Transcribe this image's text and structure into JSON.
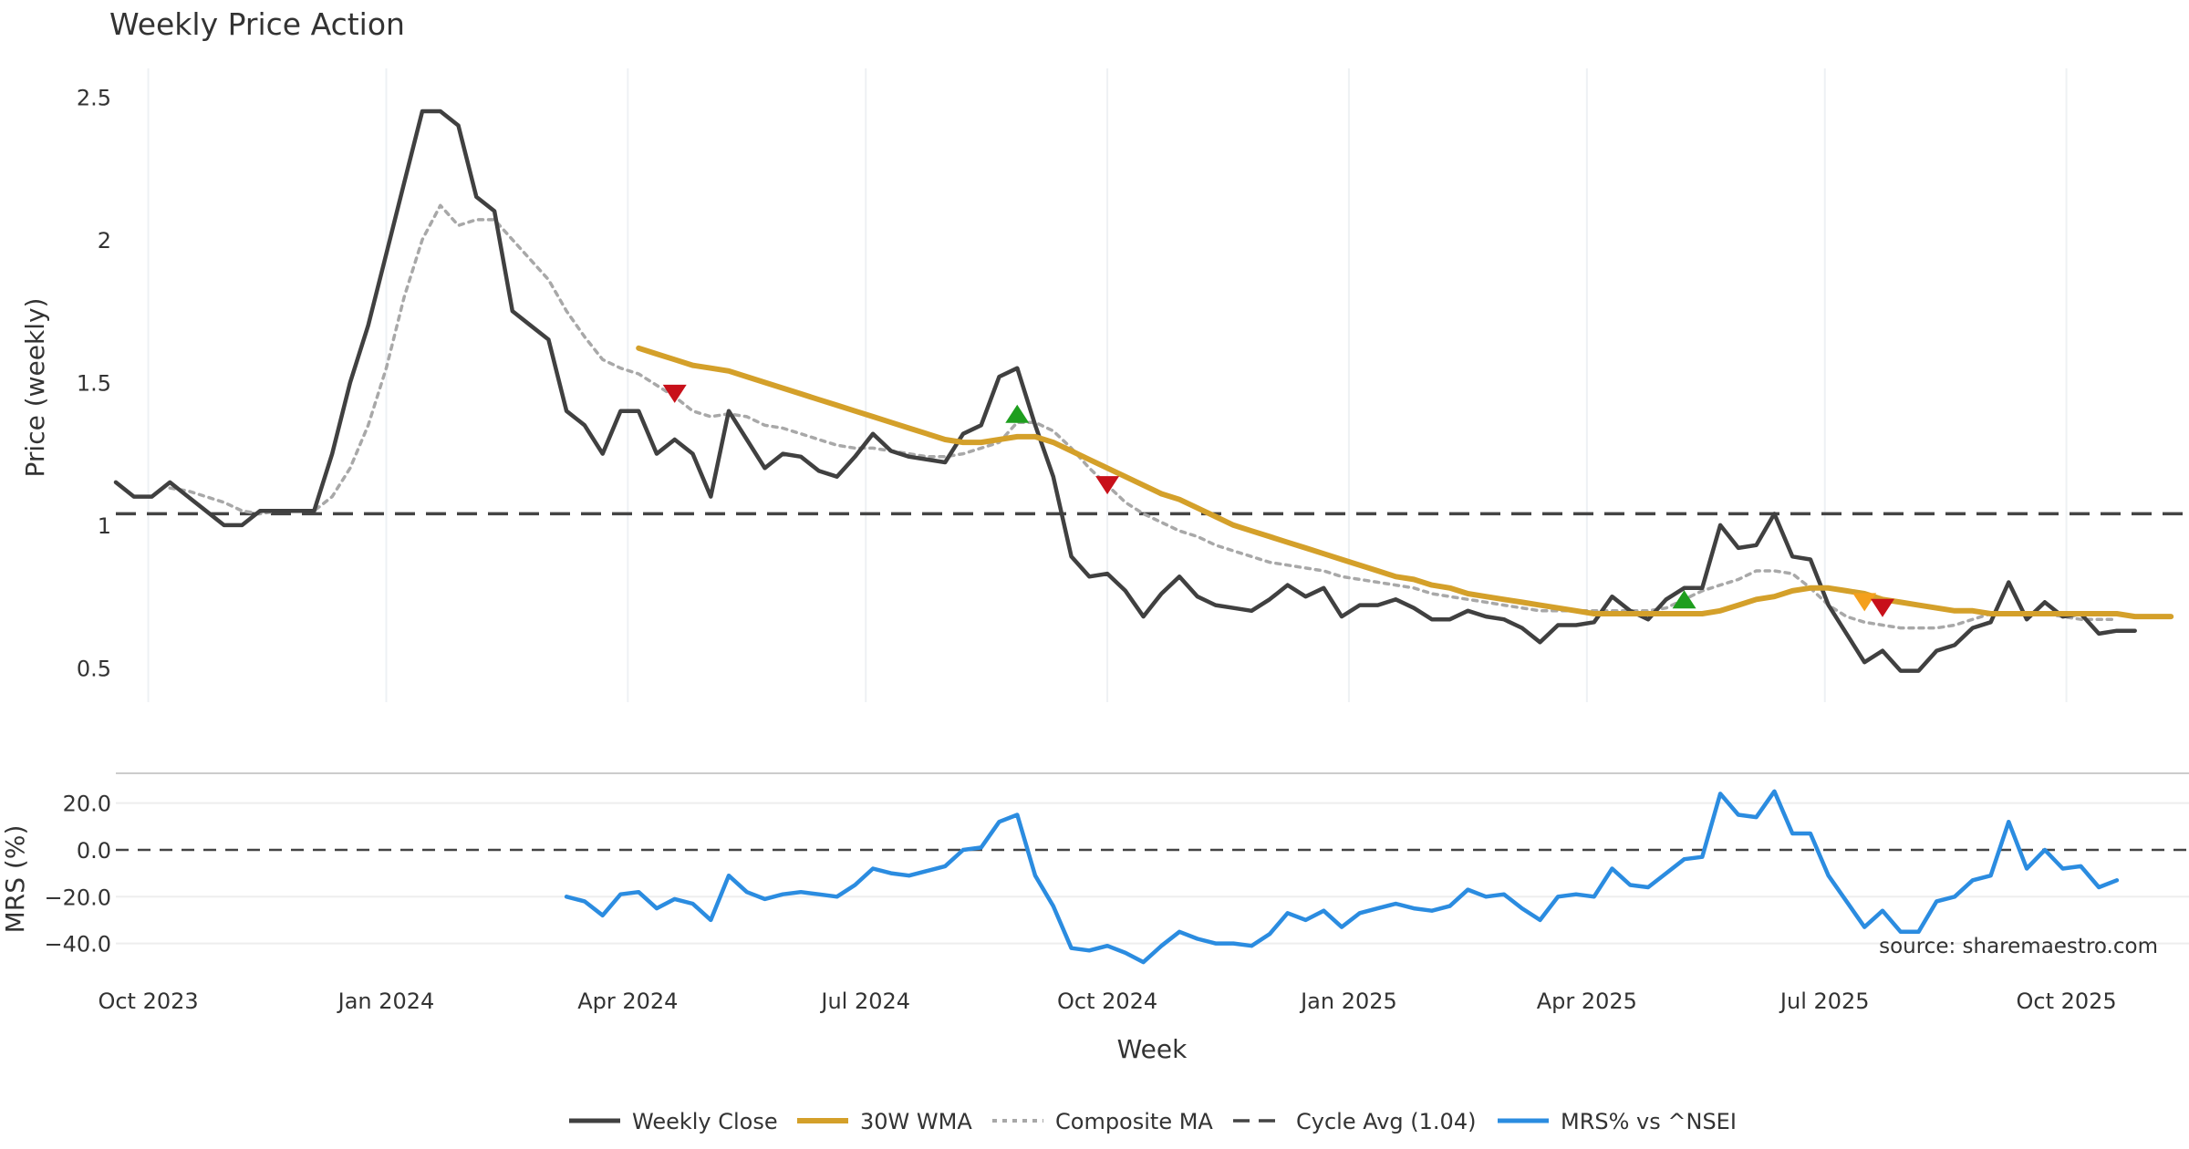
{
  "chart_data": {
    "type": "line",
    "title": "Weekly Price Action",
    "source_note": "source: sharemaestro.com",
    "x_axis": {
      "label": "Week",
      "ticks": [
        "Oct 2023",
        "Jan 2024",
        "Apr 2024",
        "Jul 2024",
        "Oct 2024",
        "Jan 2025",
        "Apr 2025",
        "Jul 2025",
        "Oct 2025"
      ],
      "range_weeks": [
        0,
        115
      ]
    },
    "price_panel": {
      "ylabel": "Price (weekly)",
      "ylim": [
        0.38,
        2.6
      ],
      "yticks": [
        0.5,
        1,
        1.5,
        2,
        2.5
      ],
      "ytick_labels": [
        "0.5",
        "1",
        "1.5",
        "2",
        "2.5"
      ],
      "cycle_avg": 1.04,
      "series": [
        {
          "name": "Weekly Close",
          "color": "#404040",
          "start_week": 0,
          "values": [
            1.15,
            1.1,
            1.1,
            1.15,
            1.1,
            1.05,
            1.0,
            1.0,
            1.05,
            1.05,
            1.05,
            1.05,
            1.25,
            1.5,
            1.7,
            1.95,
            2.2,
            2.45,
            2.45,
            2.4,
            2.15,
            2.1,
            1.75,
            1.7,
            1.65,
            1.4,
            1.35,
            1.25,
            1.4,
            1.4,
            1.25,
            1.3,
            1.25,
            1.1,
            1.4,
            1.3,
            1.2,
            1.25,
            1.24,
            1.19,
            1.17,
            1.24,
            1.32,
            1.26,
            1.24,
            1.23,
            1.22,
            1.32,
            1.35,
            1.52,
            1.55,
            1.35,
            1.17,
            0.89,
            0.82,
            0.83,
            0.77,
            0.68,
            0.76,
            0.82,
            0.75,
            0.72,
            0.71,
            0.7,
            0.74,
            0.79,
            0.75,
            0.78,
            0.68,
            0.72,
            0.72,
            0.74,
            0.71,
            0.67,
            0.67,
            0.7,
            0.68,
            0.67,
            0.64,
            0.59,
            0.65,
            0.65,
            0.66,
            0.75,
            0.7,
            0.67,
            0.74,
            0.78,
            0.78,
            1.0,
            0.92,
            0.93,
            1.04,
            0.89,
            0.88,
            0.72,
            0.62,
            0.52,
            0.56,
            0.49,
            0.49,
            0.56,
            0.58,
            0.64,
            0.66,
            0.8,
            0.67,
            0.73,
            0.68,
            0.69,
            0.62,
            0.63,
            0.63
          ]
        },
        {
          "name": "30W WMA",
          "color": "#D4A02A",
          "start_week": 29,
          "values": [
            1.62,
            1.6,
            1.58,
            1.56,
            1.55,
            1.54,
            1.52,
            1.5,
            1.48,
            1.46,
            1.44,
            1.42,
            1.4,
            1.38,
            1.36,
            1.34,
            1.32,
            1.3,
            1.29,
            1.29,
            1.3,
            1.31,
            1.31,
            1.29,
            1.26,
            1.23,
            1.2,
            1.17,
            1.14,
            1.11,
            1.09,
            1.06,
            1.03,
            1.0,
            0.98,
            0.96,
            0.94,
            0.92,
            0.9,
            0.88,
            0.86,
            0.84,
            0.82,
            0.81,
            0.79,
            0.78,
            0.76,
            0.75,
            0.74,
            0.73,
            0.72,
            0.71,
            0.7,
            0.69,
            0.69,
            0.69,
            0.69,
            0.69,
            0.69,
            0.69,
            0.7,
            0.72,
            0.74,
            0.75,
            0.77,
            0.78,
            0.78,
            0.77,
            0.76,
            0.74,
            0.73,
            0.72,
            0.71,
            0.7,
            0.7,
            0.69,
            0.69,
            0.69,
            0.69,
            0.69,
            0.69,
            0.69,
            0.69,
            0.68,
            0.68,
            0.68
          ]
        },
        {
          "name": "Composite MA",
          "color": "#A8A8A8",
          "start_week": 3,
          "values": [
            1.13,
            1.12,
            1.1,
            1.08,
            1.05,
            1.04,
            1.05,
            1.05,
            1.05,
            1.1,
            1.2,
            1.35,
            1.55,
            1.8,
            2.0,
            2.12,
            2.05,
            2.07,
            2.07,
            2.0,
            1.93,
            1.86,
            1.75,
            1.66,
            1.58,
            1.55,
            1.53,
            1.49,
            1.45,
            1.4,
            1.38,
            1.39,
            1.38,
            1.35,
            1.34,
            1.32,
            1.3,
            1.28,
            1.27,
            1.27,
            1.26,
            1.25,
            1.24,
            1.24,
            1.25,
            1.27,
            1.29,
            1.36,
            1.36,
            1.33,
            1.27,
            1.2,
            1.14,
            1.08,
            1.04,
            1.01,
            0.98,
            0.96,
            0.93,
            0.91,
            0.89,
            0.87,
            0.86,
            0.85,
            0.84,
            0.82,
            0.81,
            0.8,
            0.79,
            0.78,
            0.76,
            0.75,
            0.74,
            0.73,
            0.72,
            0.71,
            0.7,
            0.7,
            0.7,
            0.7,
            0.7,
            0.7,
            0.7,
            0.71,
            0.74,
            0.77,
            0.79,
            0.81,
            0.84,
            0.84,
            0.83,
            0.78,
            0.72,
            0.68,
            0.66,
            0.65,
            0.64,
            0.64,
            0.64,
            0.65,
            0.67,
            0.69,
            0.69,
            0.69,
            0.69,
            0.68,
            0.67,
            0.67,
            0.67
          ]
        }
      ],
      "markers": [
        {
          "type": "sell",
          "week": 31,
          "value": 1.46,
          "color": "#C8101A"
        },
        {
          "type": "buy",
          "week": 50,
          "value": 1.39,
          "color": "#1E9E1E"
        },
        {
          "type": "sell",
          "week": 55,
          "value": 1.14,
          "color": "#C8101A"
        },
        {
          "type": "buy",
          "week": 87,
          "value": 0.74,
          "color": "#1E9E1E"
        },
        {
          "type": "warn",
          "week": 97,
          "value": 0.73,
          "color": "#F4A01C"
        },
        {
          "type": "sell",
          "week": 98,
          "value": 0.71,
          "color": "#C8101A"
        }
      ]
    },
    "mrs_panel": {
      "ylabel": "MRS (%)",
      "ylim": [
        -46,
        30
      ],
      "yticks": [
        20,
        0,
        -20,
        -40
      ],
      "ytick_labels": [
        "20.0",
        "0.0",
        "−20.0",
        "−40.0"
      ],
      "series": [
        {
          "name": "MRS% vs ^NSEI",
          "color": "#2B8CE0",
          "start_week": 25,
          "values": [
            -20,
            -22,
            -28,
            -19,
            -18,
            -25,
            -21,
            -23,
            -30,
            -11,
            -18,
            -21,
            -19,
            -18,
            -19,
            -20,
            -15,
            -8,
            -10,
            -11,
            -9,
            -7,
            0,
            1,
            12,
            15,
            -11,
            -24,
            -42,
            -43,
            -41,
            -44,
            -48,
            -41,
            -35,
            -38,
            -40,
            -40,
            -41,
            -36,
            -27,
            -30,
            -26,
            -33,
            -27,
            -25,
            -23,
            -25,
            -26,
            -24,
            -17,
            -20,
            -19,
            -25,
            -30,
            -20,
            -19,
            -20,
            -8,
            -15,
            -16,
            -10,
            -4,
            -3,
            24,
            15,
            14,
            25,
            7,
            7,
            -11,
            -22,
            -33,
            -26,
            -35,
            -35,
            -22,
            -20,
            -13,
            -11,
            12,
            -8,
            0,
            -8,
            -7,
            -16,
            -13
          ]
        }
      ]
    },
    "legend": {
      "position": "bottom-center",
      "entries": [
        "Weekly Close",
        "30W WMA",
        "Composite MA",
        "Cycle Avg (1.04)",
        "MRS% vs ^NSEI"
      ]
    }
  }
}
